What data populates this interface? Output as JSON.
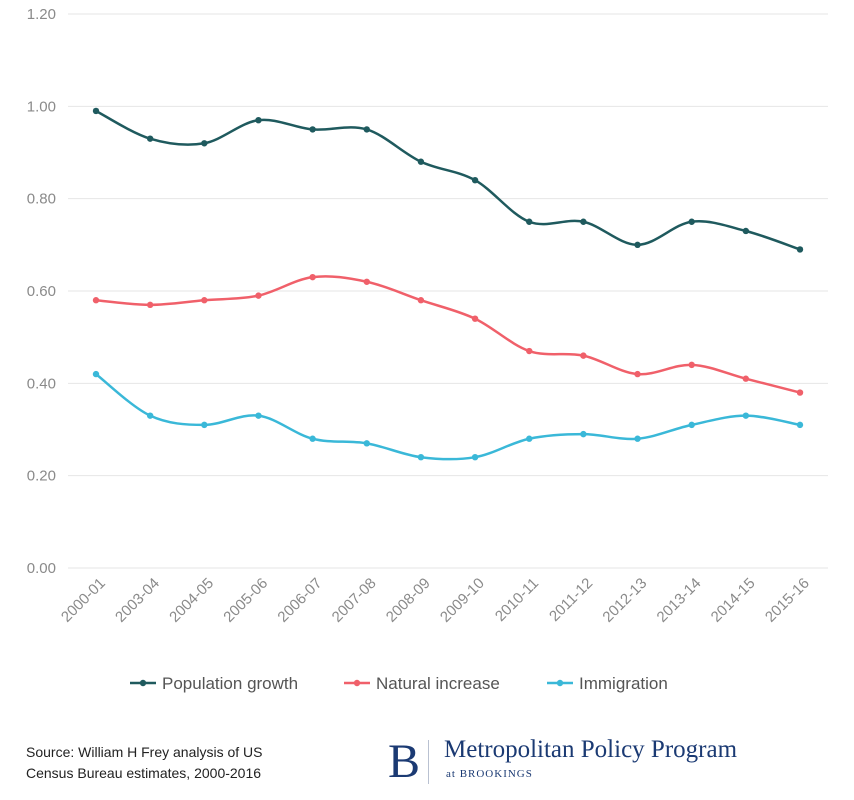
{
  "chart_data": {
    "type": "line",
    "title": "",
    "xlabel": "",
    "ylabel": "",
    "ylim": [
      0,
      1.2
    ],
    "yticks": [
      "0.00",
      "0.20",
      "0.40",
      "0.60",
      "0.80",
      "1.00",
      "1.20"
    ],
    "grid": true,
    "legend_position": "bottom",
    "categories": [
      "2000-01",
      "2003-04",
      "2004-05",
      "2005-06",
      "2006-07",
      "2007-08",
      "2008-09",
      "2009-10",
      "2010-11",
      "2011-12",
      "2012-13",
      "2013-14",
      "2014-15",
      "2015-16"
    ],
    "series": [
      {
        "name": "Population growth",
        "color": "#1f5a5e",
        "values": [
          0.99,
          0.93,
          0.92,
          0.97,
          0.95,
          0.95,
          0.88,
          0.84,
          0.75,
          0.75,
          0.7,
          0.75,
          0.73,
          0.69
        ]
      },
      {
        "name": "Natural  increase",
        "color": "#f0606a",
        "values": [
          0.58,
          0.57,
          0.58,
          0.59,
          0.63,
          0.62,
          0.58,
          0.54,
          0.47,
          0.46,
          0.42,
          0.44,
          0.41,
          0.38
        ]
      },
      {
        "name": "Immigration",
        "color": "#3ab8d8",
        "values": [
          0.42,
          0.33,
          0.31,
          0.33,
          0.28,
          0.27,
          0.24,
          0.24,
          0.28,
          0.29,
          0.28,
          0.31,
          0.33,
          0.31
        ]
      }
    ]
  },
  "footer": {
    "source_line1": "Source: William H Frey analysis of US",
    "source_line2": "Census Bureau estimates, 2000-2016",
    "brand_logo": "B",
    "brand_title": "Metropolitan Policy Program",
    "brand_sub": "at BROOKINGS"
  }
}
